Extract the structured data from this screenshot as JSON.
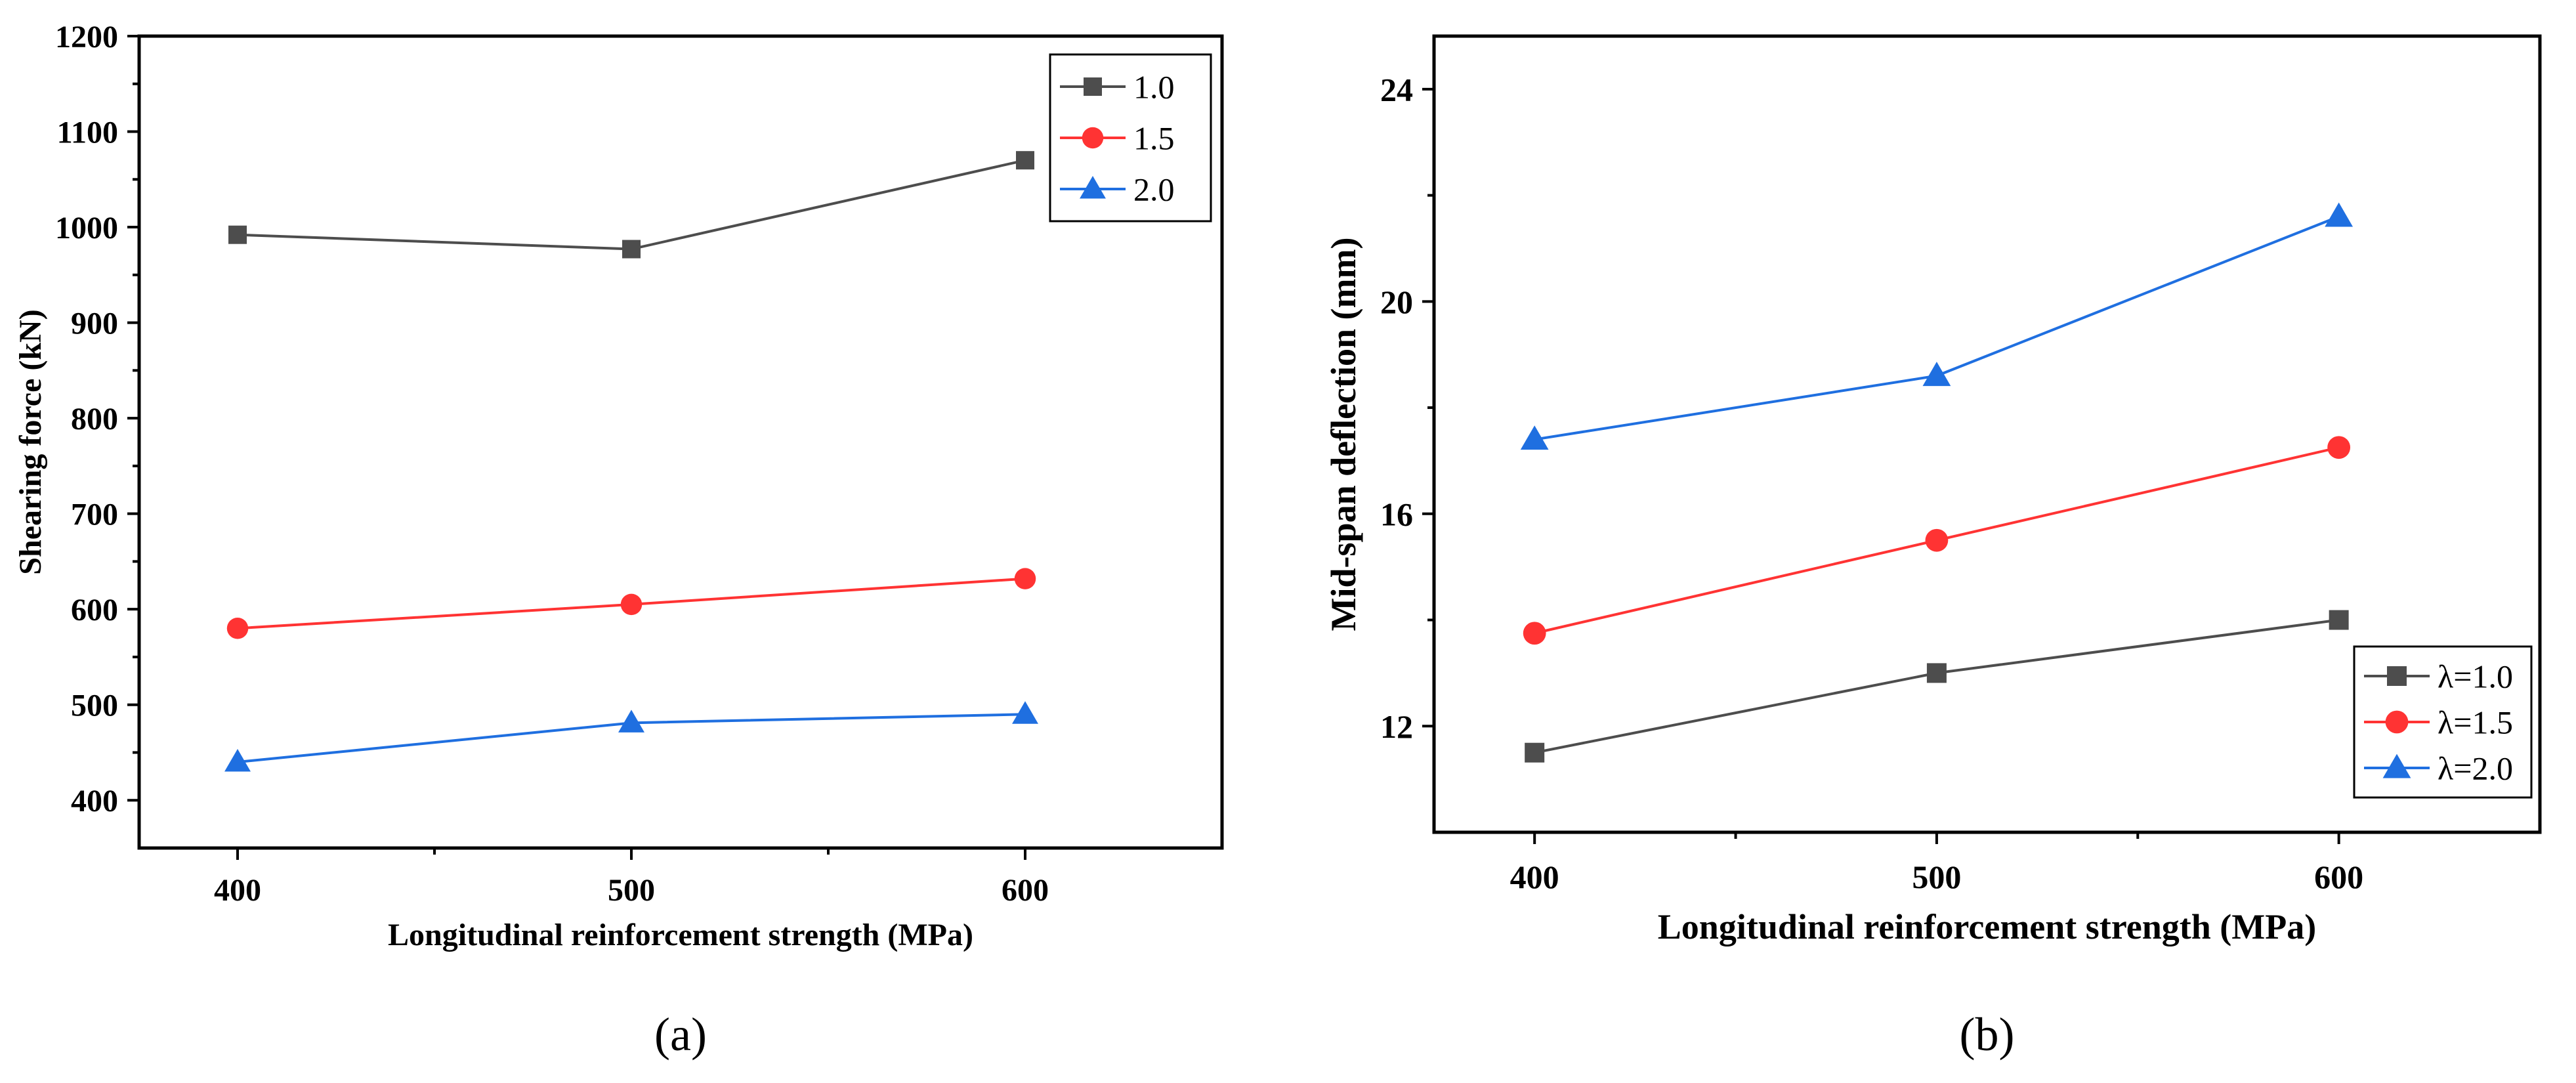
{
  "chart_data": [
    {
      "type": "line",
      "panel_label": "(a)",
      "xlabel": "Longitudinal reinforcement strength (MPa)",
      "ylabel": "Shearing force (kN)",
      "x": [
        400,
        500,
        600
      ],
      "xticks": [
        400,
        500,
        600
      ],
      "yticks": [
        400,
        500,
        600,
        700,
        800,
        900,
        1000,
        1100,
        1200
      ],
      "xlim": [
        375,
        650
      ],
      "ylim": [
        350,
        1200
      ],
      "grid": false,
      "legend_position": "top-right",
      "series": [
        {
          "name": "1.0",
          "color": "#4d4d4d",
          "marker": "square",
          "values": [
            992,
            977,
            1070
          ]
        },
        {
          "name": "1.5",
          "color": "#ff3333",
          "marker": "circle",
          "values": [
            580,
            605,
            632
          ]
        },
        {
          "name": "2.0",
          "color": "#1f6fe0",
          "marker": "triangle",
          "values": [
            440,
            481,
            490
          ]
        }
      ]
    },
    {
      "type": "line",
      "panel_label": "(b)",
      "xlabel": "Longitudinal reinforcement strength (MPa)",
      "ylabel": "Mid-span deflection (mm)",
      "x": [
        400,
        500,
        600
      ],
      "xticks": [
        400,
        500,
        600
      ],
      "yticks": [
        12,
        16,
        20,
        24
      ],
      "xlim": [
        375,
        650
      ],
      "ylim": [
        10,
        25
      ],
      "grid": false,
      "legend_position": "bottom-right",
      "series": [
        {
          "name": "λ=1.0",
          "color": "#4d4d4d",
          "marker": "square",
          "values": [
            11.5,
            13.0,
            14.0
          ]
        },
        {
          "name": "λ=1.5",
          "color": "#ff3333",
          "marker": "circle",
          "values": [
            13.75,
            15.5,
            17.25
          ]
        },
        {
          "name": "λ=2.0",
          "color": "#1f6fe0",
          "marker": "triangle",
          "values": [
            17.4,
            18.6,
            21.6
          ]
        }
      ]
    }
  ]
}
